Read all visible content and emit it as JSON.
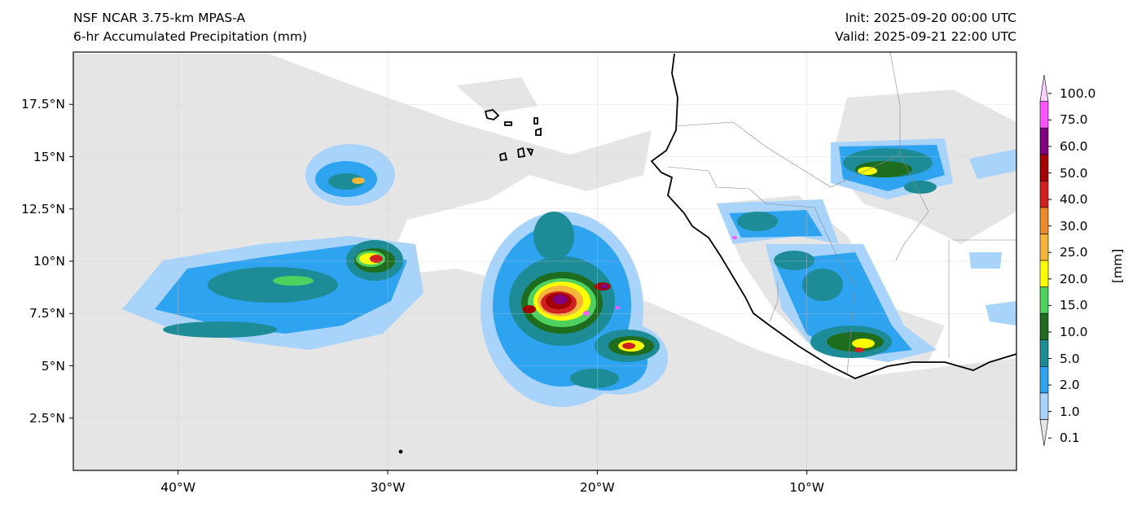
{
  "header": {
    "title_left_1": "NSF NCAR 3.75-km MPAS-A",
    "title_left_2": "6-hr Accumulated Precipitation (mm)",
    "title_right_1": "Init: 2025-09-20 00:00 UTC",
    "title_right_2": "Valid: 2025-09-21 22:00 UTC"
  },
  "map": {
    "lon_range": [
      -45,
      0
    ],
    "lat_range": [
      0,
      20
    ],
    "lat_ticks": [
      {
        "value": 2.5,
        "label": "2.5°N"
      },
      {
        "value": 5,
        "label": "5°N"
      },
      {
        "value": 7.5,
        "label": "7.5°N"
      },
      {
        "value": 10,
        "label": "10°N"
      },
      {
        "value": 12.5,
        "label": "12.5°N"
      },
      {
        "value": 15,
        "label": "15°N"
      },
      {
        "value": 17.5,
        "label": "17.5°N"
      }
    ],
    "lon_ticks": [
      {
        "value": -40,
        "label": "40°W"
      },
      {
        "value": -30,
        "label": "30°W"
      },
      {
        "value": -20,
        "label": "20°W"
      },
      {
        "value": -10,
        "label": "10°W"
      }
    ],
    "gridlines": true,
    "coastline_color": "#000000",
    "border_color": "#888888"
  },
  "colorbar": {
    "units": "[mm]",
    "levels": [
      {
        "label": "0.1",
        "color": "#e5e5e5"
      },
      {
        "label": "1.0",
        "color": "#a8d3fa"
      },
      {
        "label": "2.0",
        "color": "#2ea3f0"
      },
      {
        "label": "5.0",
        "color": "#1e8c96"
      },
      {
        "label": "10.0",
        "color": "#1e6c1e"
      },
      {
        "label": "15.0",
        "color": "#4fd15f"
      },
      {
        "label": "20.0",
        "color": "#ffff00"
      },
      {
        "label": "25.0",
        "color": "#f5b53a"
      },
      {
        "label": "30.0",
        "color": "#ef8a2a"
      },
      {
        "label": "40.0",
        "color": "#d12020"
      },
      {
        "label": "50.0",
        "color": "#a40000"
      },
      {
        "label": "60.0",
        "color": "#800080"
      },
      {
        "label": "75.0",
        "color": "#ff55ff"
      },
      {
        "label": "100.0",
        "color": "#ffd0ff"
      }
    ]
  }
}
